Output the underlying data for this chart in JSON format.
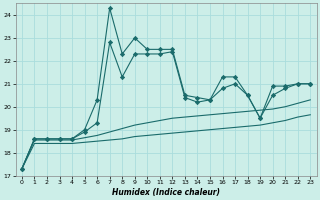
{
  "title": "",
  "xlabel": "Humidex (Indice chaleur)",
  "bg_color": "#cceee8",
  "grid_color": "#aadddd",
  "line_color": "#1a6b6b",
  "xlim": [
    -0.5,
    23.5
  ],
  "ylim": [
    17,
    24.5
  ],
  "yticks": [
    17,
    18,
    19,
    20,
    21,
    22,
    23,
    24
  ],
  "xticks": [
    0,
    1,
    2,
    3,
    4,
    5,
    6,
    7,
    8,
    9,
    10,
    11,
    12,
    13,
    14,
    15,
    16,
    17,
    18,
    19,
    20,
    21,
    22,
    23
  ],
  "series": {
    "main": [
      17.3,
      18.6,
      18.6,
      18.6,
      18.6,
      19.0,
      20.3,
      24.3,
      22.3,
      23.0,
      22.5,
      22.5,
      22.5,
      20.5,
      20.4,
      20.3,
      21.3,
      21.3,
      20.5,
      19.5,
      20.9,
      20.9,
      21.0,
      21.0
    ],
    "line2": [
      17.3,
      18.6,
      18.6,
      18.6,
      18.6,
      18.9,
      19.3,
      22.8,
      21.3,
      22.3,
      22.3,
      22.3,
      22.4,
      20.4,
      20.2,
      20.3,
      20.8,
      21.0,
      20.5,
      19.5,
      20.5,
      20.8,
      21.0,
      21.0
    ],
    "lower1": [
      17.3,
      18.55,
      18.55,
      18.55,
      18.55,
      18.65,
      18.75,
      18.9,
      19.05,
      19.2,
      19.3,
      19.4,
      19.5,
      19.55,
      19.6,
      19.65,
      19.7,
      19.75,
      19.8,
      19.85,
      19.9,
      20.0,
      20.15,
      20.3
    ],
    "lower2": [
      17.3,
      18.4,
      18.4,
      18.4,
      18.4,
      18.45,
      18.5,
      18.55,
      18.6,
      18.7,
      18.75,
      18.8,
      18.85,
      18.9,
      18.95,
      19.0,
      19.05,
      19.1,
      19.15,
      19.2,
      19.3,
      19.4,
      19.55,
      19.65
    ]
  }
}
